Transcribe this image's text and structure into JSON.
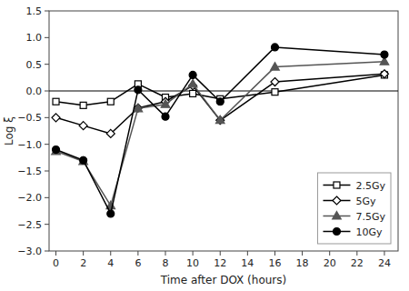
{
  "chart_data": {
    "type": "line",
    "xlabel": "Time after DOX (hours)",
    "ylabel": "Log ξ",
    "x": [
      0,
      2,
      4,
      6,
      8,
      10,
      12,
      16,
      24
    ],
    "series": [
      {
        "name": "2.5Gy",
        "color": "#000000",
        "marker": "square-open",
        "values": [
          -0.2,
          -0.27,
          -0.2,
          0.13,
          -0.12,
          -0.05,
          -0.15,
          -0.02,
          0.3
        ]
      },
      {
        "name": "5Gy",
        "color": "#000000",
        "marker": "diamond-open",
        "values": [
          -0.5,
          -0.65,
          -0.8,
          -0.32,
          -0.2,
          0.1,
          -0.55,
          0.17,
          0.32
        ]
      },
      {
        "name": "7.5Gy",
        "color": "#555555",
        "marker": "triangle",
        "values": [
          -1.13,
          -1.32,
          -2.15,
          -0.33,
          -0.25,
          0.13,
          -0.55,
          0.45,
          0.55
        ]
      },
      {
        "name": "10Gy",
        "color": "#000000",
        "marker": "circle",
        "values": [
          -1.1,
          -1.3,
          -2.3,
          0.02,
          -0.48,
          0.3,
          -0.2,
          0.82,
          0.68
        ]
      }
    ],
    "hline": 0,
    "xlim": [
      -0.5,
      25
    ],
    "ylim": [
      -3,
      1.5
    ],
    "xticks": [
      0,
      2,
      4,
      6,
      8,
      10,
      12,
      14,
      16,
      18,
      20,
      22,
      24
    ],
    "yticks": [
      {
        "value": -3,
        "label": "−3.0"
      },
      {
        "value": -2.5,
        "label": "−2.5"
      },
      {
        "value": -2,
        "label": "−2.0"
      },
      {
        "value": -1.5,
        "label": "−1.5"
      },
      {
        "value": -1,
        "label": "−1.0"
      },
      {
        "value": -0.5,
        "label": "−0.5"
      },
      {
        "value": 0,
        "label": "0.0"
      },
      {
        "value": 0.5,
        "label": "0.5"
      },
      {
        "value": 1,
        "label": "1.0"
      },
      {
        "value": 1.5,
        "label": "1.5"
      }
    ],
    "grid": false,
    "legend": "lower right"
  }
}
